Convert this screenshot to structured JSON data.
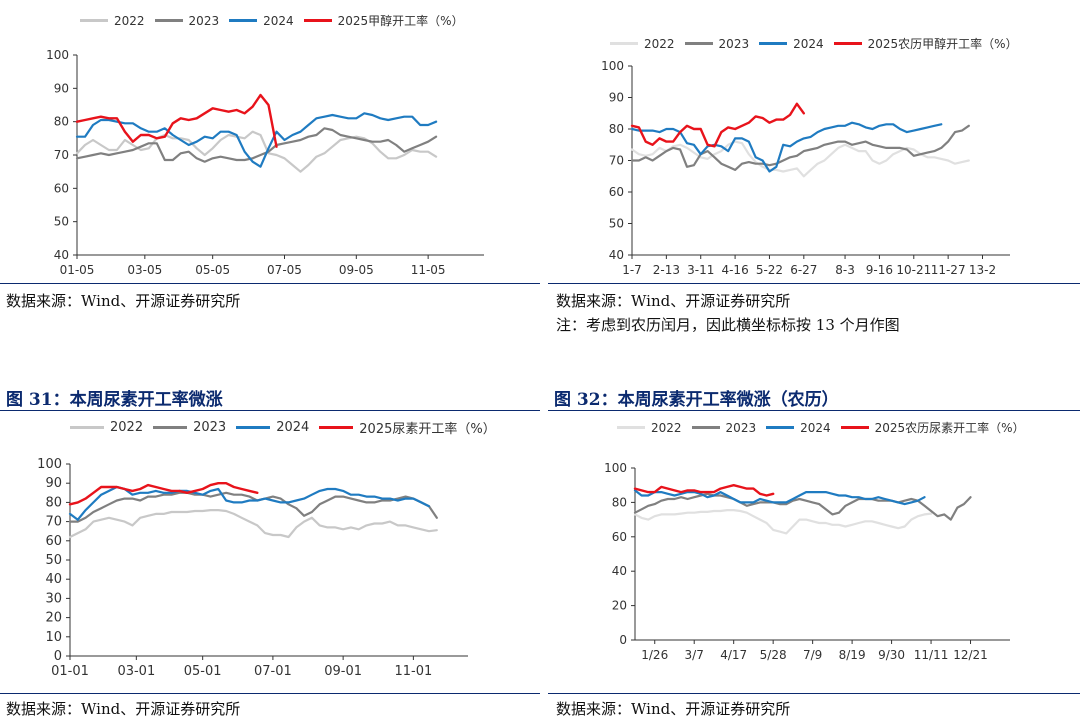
{
  "colors": {
    "s2022": "#c8c8c8",
    "s2023": "#808080",
    "s2024": "#1f7bc1",
    "s2025": "#e8131b"
  },
  "source_text": "数据来源：Wind、开源证券研究所",
  "note_text": "注：考虑到农历闰月，因此横坐标标按 13 个月作图",
  "fig31_title": "图 31：本周尿素开工率微涨",
  "fig32_title": "图 32：本周尿素开工率微涨（农历）",
  "chart_data": [
    {
      "type": "line",
      "panel": "methanol-calendar",
      "ylim": [
        40,
        100
      ],
      "yticks": [
        40,
        50,
        60,
        70,
        80,
        90,
        100
      ],
      "xtick_labels": [
        "01-05",
        "03-05",
        "05-05",
        "07-05",
        "09-05",
        "11-05"
      ],
      "legend": [
        "2022",
        "2023",
        "2024",
        "2025甲醇开工率（%）"
      ],
      "series": [
        {
          "name": "2022",
          "values": [
            70.5,
            73,
            74.5,
            73,
            71.5,
            71.5,
            74.5,
            73,
            71.5,
            72,
            75,
            76,
            75,
            75,
            74.5,
            72,
            70,
            72,
            74.5,
            76,
            75.5,
            75,
            77,
            76,
            70.5,
            70,
            69,
            67,
            65,
            67,
            69.5,
            70.5,
            72.5,
            74.5,
            75,
            75.5,
            75,
            73.5,
            71,
            69,
            69,
            70,
            71.5,
            71,
            71,
            69.5
          ]
        },
        {
          "name": "2023",
          "values": [
            69,
            69.5,
            70,
            70.5,
            70,
            70.5,
            71,
            71.5,
            72.5,
            73.5,
            73.5,
            68.5,
            68.5,
            70.5,
            71,
            69,
            68,
            69,
            69.5,
            69,
            68.5,
            68.5,
            69,
            70,
            71,
            73,
            73.5,
            74,
            74.5,
            75.5,
            76,
            78,
            77.5,
            76,
            75.5,
            75,
            74.5,
            74,
            74,
            74.5,
            73,
            71,
            72,
            73,
            74,
            75.5
          ]
        },
        {
          "name": "2024",
          "values": [
            75.5,
            75.5,
            79,
            80.5,
            80.5,
            80,
            79.5,
            79.5,
            78,
            77,
            77,
            78,
            76,
            74.5,
            73,
            74,
            75.5,
            75,
            77,
            77,
            76,
            71,
            68,
            66.5,
            72,
            77,
            74.5,
            76,
            77,
            79,
            81,
            81.5,
            82,
            81.5,
            81,
            81,
            82.5,
            82,
            81,
            80.5,
            81,
            81.5,
            81.5,
            79,
            79,
            80
          ]
        },
        {
          "name": "2025",
          "values": [
            80,
            80.5,
            81,
            81.5,
            81,
            81,
            77,
            74,
            76,
            76,
            75,
            75.5,
            79.5,
            81,
            80.5,
            81,
            82.5,
            84,
            83.5,
            83,
            83.5,
            82.5,
            84.5,
            88,
            85,
            72.5
          ]
        }
      ]
    },
    {
      "type": "line",
      "panel": "methanol-lunar",
      "ylim": [
        40,
        100
      ],
      "yticks": [
        40,
        50,
        60,
        70,
        80,
        90,
        100
      ],
      "xtick_labels": [
        "1-7",
        "2-13",
        "3-11",
        "4-16",
        "5-22",
        "6-27",
        "8-3",
        "9-16",
        "10-21",
        "11-27",
        "13-2"
      ],
      "legend": [
        "2022",
        "2023",
        "2024",
        "2025农历甲醇开工率（%）"
      ],
      "series": [
        {
          "name": "2022",
          "values": [
            73.5,
            72,
            71.5,
            72,
            74,
            73,
            74.5,
            75,
            74,
            72.5,
            71,
            70.5,
            72,
            73,
            75,
            76,
            75.5,
            72,
            69.5,
            68,
            67,
            67,
            66.5,
            67,
            67.5,
            65,
            67,
            69,
            70,
            72,
            74,
            75,
            74,
            73,
            73,
            70,
            69,
            70,
            72,
            73,
            74,
            73.5,
            72,
            71,
            71,
            70.5,
            70,
            69,
            69.5,
            70
          ]
        },
        {
          "name": "2023",
          "values": [
            70,
            70,
            71,
            70,
            71.5,
            73,
            74,
            73.5,
            68,
            68.5,
            72,
            73,
            71,
            69,
            68,
            67,
            69,
            69.5,
            69,
            69,
            68.5,
            69,
            70,
            71,
            71.5,
            73,
            73.5,
            74,
            75,
            75.5,
            76,
            76,
            75,
            75.5,
            76,
            75,
            74.5,
            74,
            74,
            74,
            73.5,
            71.5,
            72,
            72.5,
            73,
            74,
            76,
            79,
            79.5,
            81
          ]
        },
        {
          "name": "2024",
          "values": [
            80,
            79.5,
            79.5,
            79.5,
            79,
            80,
            80,
            79,
            75.5,
            75,
            72,
            74.5,
            75,
            74.5,
            73,
            77,
            77,
            76,
            71,
            70,
            66.5,
            68,
            75,
            74.5,
            76,
            77,
            77.5,
            79,
            80,
            80.5,
            81,
            81,
            82,
            81.5,
            80.5,
            80,
            81,
            81.5,
            81.5,
            80,
            79,
            79.5,
            80,
            80.5,
            81,
            81.5
          ]
        },
        {
          "name": "2025",
          "values": [
            81,
            80.5,
            76,
            75,
            77,
            76,
            76,
            79,
            81,
            80,
            80,
            75,
            74.5,
            79,
            80.5,
            80,
            81,
            82,
            84,
            83.5,
            82,
            83,
            83,
            84.5,
            88,
            85
          ]
        }
      ]
    },
    {
      "type": "line",
      "panel": "urea-calendar",
      "ylim": [
        0,
        100
      ],
      "yticks": [
        0,
        10,
        20,
        30,
        40,
        50,
        60,
        70,
        80,
        90,
        100
      ],
      "xtick_labels": [
        "01-01",
        "03-01",
        "05-01",
        "07-01",
        "09-01",
        "11-01"
      ],
      "legend": [
        "2022",
        "2023",
        "2024",
        "2025尿素开工率（%）"
      ],
      "series": [
        {
          "name": "2022",
          "values": [
            62,
            64,
            66,
            70,
            71,
            72,
            71,
            70,
            68,
            72,
            73,
            74,
            74,
            75,
            75,
            75,
            75.5,
            75.5,
            76,
            76,
            75.5,
            74,
            72,
            70,
            68,
            64,
            63,
            63,
            62,
            67,
            70,
            72,
            68,
            67,
            67,
            66,
            67,
            66,
            68,
            69,
            69,
            70,
            68,
            68,
            67,
            66,
            65,
            65.5
          ]
        },
        {
          "name": "2023",
          "values": [
            70,
            70,
            72,
            75,
            77,
            79,
            81,
            82,
            82,
            81,
            83,
            83,
            84,
            84,
            85,
            85,
            84,
            84,
            83,
            84,
            85,
            84,
            84,
            83,
            81,
            82,
            83,
            82,
            79,
            77,
            73,
            75,
            79,
            81,
            83,
            83,
            82,
            81,
            80,
            80,
            81,
            81,
            82,
            83,
            82,
            80,
            78,
            72
          ]
        },
        {
          "name": "2024",
          "values": [
            74,
            71,
            76,
            80,
            84,
            86,
            88,
            87,
            84,
            85,
            85,
            86,
            85,
            85,
            86,
            86,
            85,
            84,
            86,
            87,
            81,
            80,
            80,
            81,
            81,
            82,
            81,
            80,
            80,
            81,
            82,
            84,
            86,
            87,
            87,
            86,
            84,
            84,
            83,
            83,
            82,
            82,
            81,
            82,
            82,
            80,
            78
          ]
        },
        {
          "name": "2025",
          "values": [
            79,
            80,
            82,
            85,
            88,
            88,
            88,
            87,
            86,
            87,
            89,
            88,
            87,
            86,
            86,
            85,
            86,
            87,
            89,
            90,
            90,
            88,
            87,
            86,
            85
          ]
        }
      ]
    },
    {
      "type": "line",
      "panel": "urea-lunar",
      "ylim": [
        0,
        100
      ],
      "yticks": [
        0,
        20,
        40,
        60,
        80,
        100
      ],
      "xtick_labels": [
        "1/26",
        "3/7",
        "4/17",
        "5/28",
        "7/9",
        "8/19",
        "9/30",
        "11/11",
        "12/21"
      ],
      "legend": [
        "2022",
        "2023",
        "2024",
        "2025农历尿素开工率（%）"
      ],
      "series": [
        {
          "name": "2022",
          "values": [
            73,
            71,
            70,
            72,
            73,
            73,
            73,
            73.5,
            74,
            74,
            74.5,
            74.5,
            75,
            75,
            75.5,
            75.5,
            75,
            74,
            72,
            70,
            68,
            64,
            63,
            62,
            66,
            70,
            70,
            69,
            68,
            68,
            67,
            67,
            66,
            67,
            68,
            69,
            69,
            68,
            67,
            66,
            65,
            66,
            70,
            72,
            73,
            73.5
          ]
        },
        {
          "name": "2023",
          "values": [
            74,
            76,
            78,
            79,
            81,
            82,
            82,
            83,
            82,
            83,
            84,
            85,
            84,
            84,
            83,
            82,
            80,
            78,
            79,
            80,
            80,
            80,
            79,
            79,
            81,
            82,
            81,
            80,
            79,
            76,
            73,
            74,
            78,
            80,
            82,
            82,
            82,
            81,
            81,
            81,
            80,
            81,
            82,
            81,
            78,
            75,
            72,
            73,
            70,
            77,
            79,
            83
          ]
        },
        {
          "name": "2024",
          "values": [
            87,
            84,
            84,
            86,
            86,
            85,
            84,
            85,
            86,
            86,
            85,
            83,
            84,
            86,
            84,
            82,
            80,
            80,
            80,
            82,
            81,
            80,
            80,
            80,
            82,
            84,
            86,
            86,
            86,
            86,
            85,
            84,
            84,
            83,
            83,
            82,
            82,
            83,
            82,
            81,
            80,
            79,
            80,
            81,
            83
          ]
        },
        {
          "name": "2025",
          "values": [
            88,
            87,
            86,
            86,
            89,
            88,
            87,
            86,
            87,
            87,
            86,
            86,
            86,
            88,
            89,
            90,
            89,
            88,
            88,
            85,
            84,
            85
          ]
        }
      ]
    }
  ]
}
